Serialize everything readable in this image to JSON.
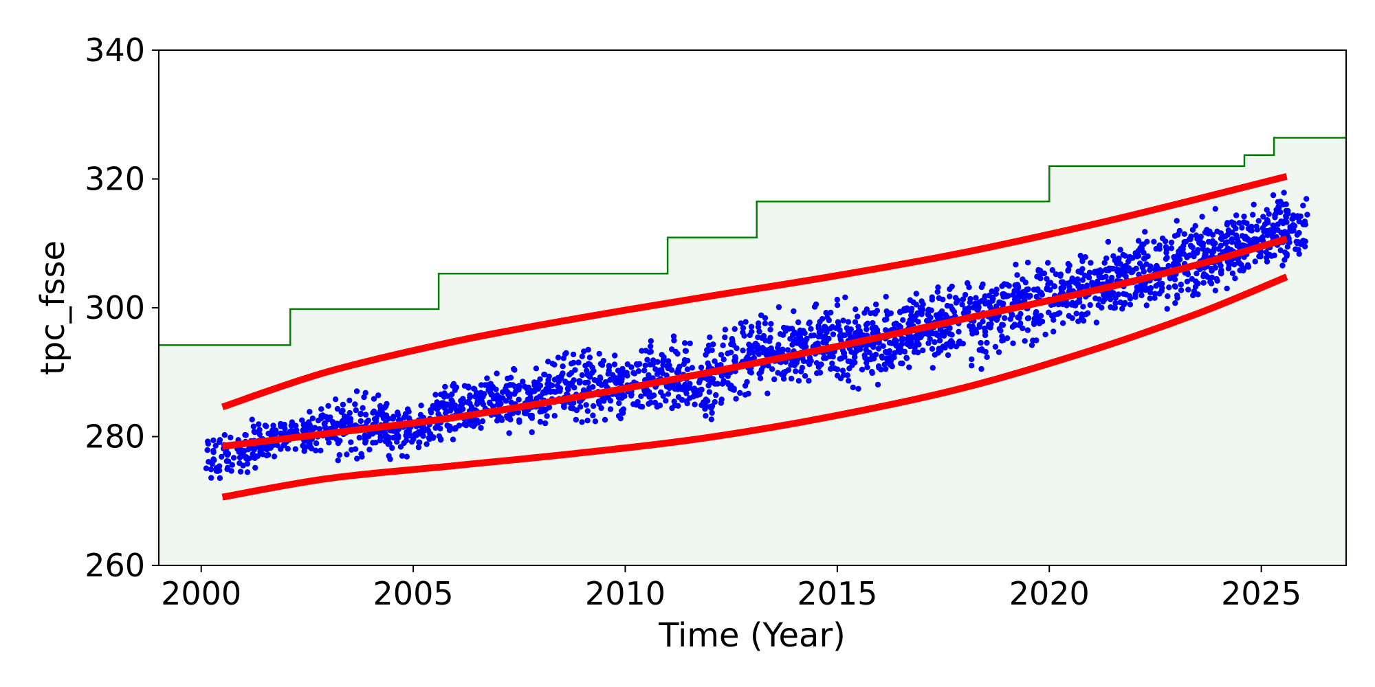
{
  "chart_data": {
    "type": "scatter",
    "title": "",
    "xlabel": "Time (Year)",
    "ylabel": "tpc_fsse",
    "xlim": [
      1999,
      2027
    ],
    "ylim": [
      260,
      340
    ],
    "x_ticks": [
      2000,
      2005,
      2010,
      2015,
      2020,
      2025
    ],
    "x_tick_labels": [
      "2000",
      "2005",
      "2010",
      "2015",
      "2020",
      "2025"
    ],
    "y_ticks": [
      260,
      280,
      300,
      320,
      340
    ],
    "y_tick_labels": [
      "260",
      "280",
      "300",
      "320",
      "340"
    ],
    "grid": false,
    "legend": "none",
    "colors": {
      "scatter": "#0000ff",
      "trend": "#ff0000",
      "limit": "#008000",
      "limit_fill": "#f0f7f0"
    },
    "limit_line": {
      "style": "step",
      "points": [
        [
          1999.0,
          294.2
        ],
        [
          2002.1,
          294.2
        ],
        [
          2002.1,
          299.8
        ],
        [
          2005.6,
          299.8
        ],
        [
          2005.6,
          305.3
        ],
        [
          2011.0,
          305.3
        ],
        [
          2011.0,
          310.9
        ],
        [
          2013.1,
          310.9
        ],
        [
          2013.1,
          316.5
        ],
        [
          2020.0,
          316.5
        ],
        [
          2020.0,
          322.0
        ],
        [
          2024.6,
          322.0
        ],
        [
          2024.6,
          323.7
        ],
        [
          2025.3,
          323.7
        ],
        [
          2025.3,
          326.4
        ],
        [
          2027.0,
          326.4
        ]
      ]
    },
    "trend_lines": [
      {
        "role": "upper",
        "x": [
          2000.5,
          2003,
          2006,
          2009,
          2012,
          2015,
          2018,
          2021,
          2023.5,
          2025.6
        ],
        "y": [
          284.6,
          290.1,
          294.8,
          298.5,
          301.8,
          305.0,
          308.6,
          312.9,
          316.9,
          320.4
        ]
      },
      {
        "role": "center",
        "x": [
          2000.5,
          2003,
          2006,
          2009,
          2012,
          2015,
          2018,
          2021,
          2023.5,
          2025.6
        ],
        "y": [
          278.5,
          280.5,
          283.0,
          286.3,
          290.0,
          294.0,
          298.3,
          302.6,
          306.7,
          310.7
        ]
      },
      {
        "role": "lower",
        "x": [
          2000.5,
          2003,
          2006,
          2009,
          2012,
          2015,
          2018,
          2021,
          2023.5,
          2025.6
        ],
        "y": [
          270.6,
          273.5,
          275.5,
          277.5,
          279.9,
          283.3,
          287.6,
          293.4,
          299.1,
          304.8
        ]
      }
    ],
    "scatter_envelope": {
      "x": [
        2000.1,
        2001,
        2002,
        2003,
        2004,
        2005,
        2006,
        2007,
        2008,
        2009,
        2010,
        2011,
        2012,
        2013,
        2014,
        2015,
        2016,
        2017,
        2018,
        2019,
        2020,
        2021,
        2022,
        2023,
        2024,
        2025,
        2026.1
      ],
      "y_low": [
        271.0,
        272.5,
        275.5,
        274.5,
        275.0,
        275.5,
        278.0,
        279.0,
        279.5,
        279.8,
        281.0,
        281.5,
        279.0,
        285.0,
        285.5,
        286.5,
        286.0,
        290.0,
        289.0,
        289.5,
        294.0,
        296.0,
        298.0,
        299.0,
        300.5,
        303.0,
        306.0
      ],
      "y_high": [
        282.0,
        283.5,
        284.5,
        287.0,
        289.5,
        285.5,
        290.5,
        292.0,
        292.5,
        296.5,
        294.0,
        297.0,
        298.0,
        301.5,
        301.0,
        302.5,
        303.5,
        304.0,
        306.0,
        310.0,
        308.5,
        311.5,
        313.0,
        315.0,
        317.0,
        319.0,
        319.5
      ],
      "n_points": 2600
    }
  }
}
